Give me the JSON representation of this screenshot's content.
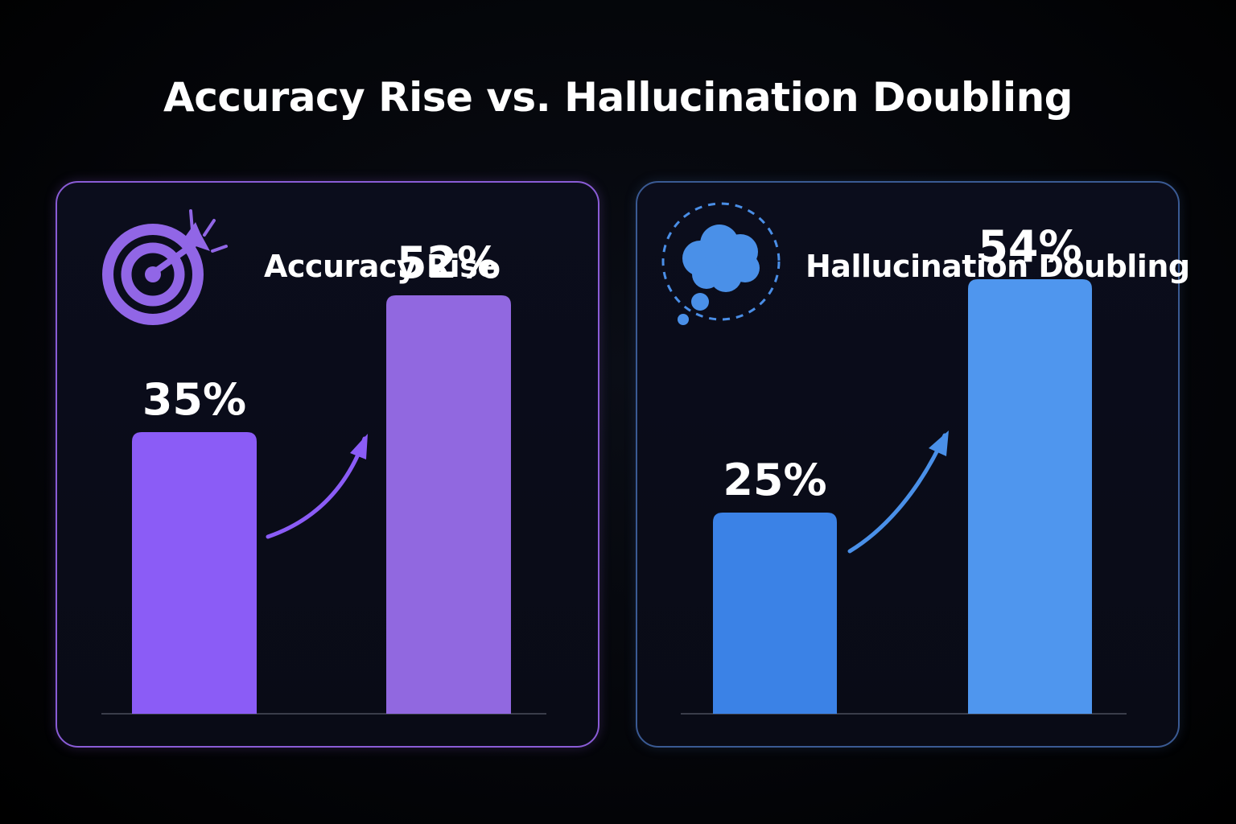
{
  "title": "Accuracy Rise vs. Hallucination Doubling",
  "chart_data": [
    {
      "type": "bar",
      "title": "Accuracy Rise",
      "icon": "target-icon",
      "categories": [
        "",
        ""
      ],
      "values": [
        35,
        52
      ],
      "value_labels": [
        "35%",
        "52%"
      ],
      "ylim": [
        0,
        55
      ],
      "grid": false,
      "colors": [
        "#8b5cf6",
        "#9168e0"
      ],
      "accent": "#8a5cd6"
    },
    {
      "type": "bar",
      "title": "Hallucination Doubling",
      "icon": "thought-cloud-icon",
      "categories": [
        "",
        ""
      ],
      "values": [
        25,
        54
      ],
      "value_labels": [
        "25%",
        "54%"
      ],
      "ylim": [
        0,
        55
      ],
      "grid": false,
      "colors": [
        "#3b82e6",
        "#4f96ee"
      ],
      "accent": "#3a5a93"
    }
  ]
}
